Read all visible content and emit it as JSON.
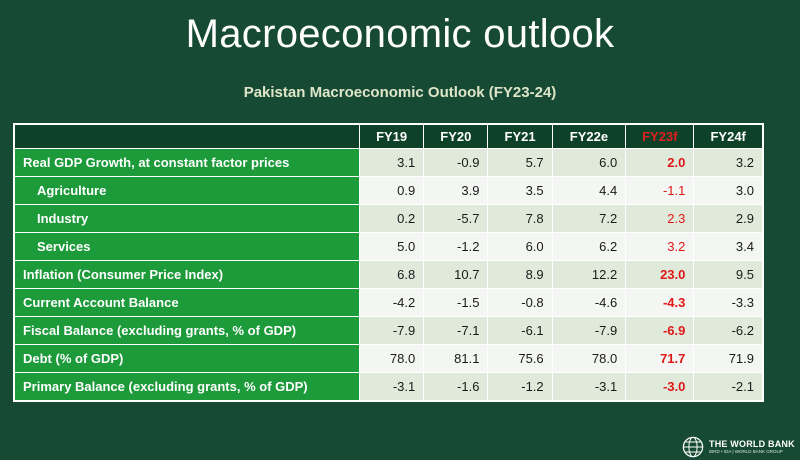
{
  "title": "Macroeconomic outlook",
  "subtitle": "Pakistan Macroeconomic Outlook (FY23-24)",
  "table": {
    "columns": [
      "FY19",
      "FY20",
      "FY21",
      "FY22e",
      "FY23f",
      "FY24f"
    ],
    "highlight_color": "#e01818",
    "rows": [
      {
        "label": "Real GDP Growth, at constant factor prices",
        "values": [
          "3.1",
          "-0.9",
          "5.7",
          "6.0",
          "2.0",
          "3.2"
        ]
      },
      {
        "label": "Agriculture",
        "values": [
          "0.9",
          "3.9",
          "3.5",
          "4.4",
          "-1.1",
          "3.0"
        ]
      },
      {
        "label": "Industry",
        "values": [
          "0.2",
          "-5.7",
          "7.8",
          "7.2",
          "2.3",
          "2.9"
        ]
      },
      {
        "label": "Services",
        "values": [
          "5.0",
          "-1.2",
          "6.0",
          "6.2",
          "3.2",
          "3.4"
        ]
      },
      {
        "label": "Inflation (Consumer Price Index)",
        "values": [
          "6.8",
          "10.7",
          "8.9",
          "12.2",
          "23.0",
          "9.5"
        ]
      },
      {
        "label": "Current Account Balance",
        "values": [
          "-4.2",
          "-1.5",
          "-0.8",
          "-4.6",
          "-4.3",
          "-3.3"
        ]
      },
      {
        "label": "Fiscal Balance (excluding grants, % of GDP)",
        "values": [
          "-7.9",
          "-7.1",
          "-6.1",
          "-7.9",
          "-6.9",
          "-6.2"
        ]
      },
      {
        "label": "Debt (% of GDP)",
        "values": [
          "78.0",
          "81.1",
          "75.6",
          "78.0",
          "71.7",
          "71.9"
        ]
      },
      {
        "label": "Primary Balance (excluding grants, % of GDP)",
        "values": [
          "-3.1",
          "-1.6",
          "-1.2",
          "-3.1",
          "-3.0",
          "-2.1"
        ]
      }
    ]
  },
  "logo": {
    "name": "THE WORLD BANK",
    "tagline": "IBRD • IDA | WORLD BANK GROUP",
    "icon": "globe-icon"
  }
}
